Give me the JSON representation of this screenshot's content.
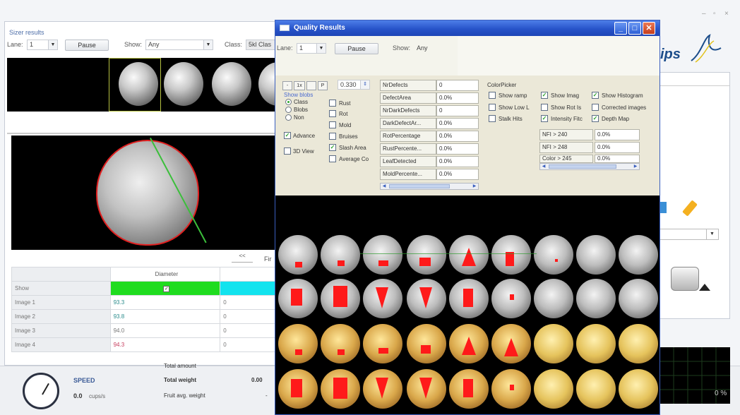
{
  "window_controls": {
    "minimize": "–",
    "maximize": "▫",
    "close": "×"
  },
  "logo": {
    "text": "ips"
  },
  "sizer": {
    "title": "Sizer results",
    "lane_label": "Lane:",
    "lane_value": "1",
    "pause_label": "Pause",
    "show_label": "Show:",
    "show_value": "Any",
    "class_label": "Class:",
    "class_value": "5kl Clas",
    "pager_label": "<<",
    "pager_right": "Fir",
    "table": {
      "diameter_header": "Diameter",
      "show_label": "Show",
      "rows": [
        {
          "label": "Image 1",
          "diameter": "93.3",
          "col3": "0"
        },
        {
          "label": "Image 2",
          "diameter": "93.8",
          "col3": "0"
        },
        {
          "label": "Image 3",
          "diameter": "94.0",
          "col3": "0"
        },
        {
          "label": "Image 4",
          "diameter": "94.3",
          "col3": "0"
        }
      ]
    }
  },
  "bottom": {
    "speed_label": "SPEED",
    "speed_value": "0.0",
    "speed_unit": "cups/s",
    "cut_label": "Total amount",
    "total_weight_label": "Total weight",
    "total_weight_value": "0.00",
    "fruit_avg_label": "Fruit avg. weight",
    "fruit_avg_value": "-",
    "graph_percent": "0 %"
  },
  "quality": {
    "title": "Quality Results",
    "lane_label": "Lane:",
    "lane_value": "1",
    "pause_label": "Pause",
    "show_label": "Show:",
    "show_value": "Any",
    "zoom_buttons": [
      "-",
      "1x",
      "",
      "P"
    ],
    "threshold_value": "0.330",
    "show_blobs_label": "Show blobs",
    "radios": [
      {
        "label": "Class",
        "on": true
      },
      {
        "label": "Blobs",
        "on": false
      },
      {
        "label": "Non",
        "on": false
      }
    ],
    "advanced_label": "Advance",
    "view3d_label": "3D View",
    "defect_checks": [
      {
        "label": "Rust",
        "checked": false
      },
      {
        "label": "Rot",
        "checked": false
      },
      {
        "label": "Mold",
        "checked": false
      },
      {
        "label": "Bruises",
        "checked": false
      },
      {
        "label": "Slash Area",
        "checked": true
      },
      {
        "label": "Average Co",
        "checked": false
      }
    ],
    "stats": [
      {
        "name": "NrDefects",
        "value": "0"
      },
      {
        "name": "DefectArea",
        "value": "0.0%"
      },
      {
        "name": "NrDarkDefects",
        "value": "0"
      },
      {
        "name": "DarkDefectAr...",
        "value": "0.0%"
      },
      {
        "name": "RotPercentage",
        "value": "0.0%"
      },
      {
        "name": "RustPercente...",
        "value": "0.0%"
      },
      {
        "name": "LeafDetected",
        "value": "0.0%"
      },
      {
        "name": "MoldPercente...",
        "value": "0.0%"
      }
    ],
    "colorpicker_label": "ColorPicker",
    "options": [
      {
        "label": "Show ramp",
        "checked": false
      },
      {
        "label": "Show Imag",
        "checked": true
      },
      {
        "label": "Show Histogram",
        "checked": true
      },
      {
        "label": "Show Low L",
        "checked": false
      },
      {
        "label": "Show Rot Is",
        "checked": false
      },
      {
        "label": "Corrected images",
        "checked": false
      },
      {
        "label": "Stalk Hits",
        "checked": false
      },
      {
        "label": "Intensity Fitc",
        "checked": true
      },
      {
        "label": "Depth Map",
        "checked": true
      }
    ],
    "nfi": [
      {
        "name": "NFI > 240",
        "value": "0.0%"
      },
      {
        "name": "NFI > 248",
        "value": "0.0%"
      },
      {
        "name": "Color > 245",
        "value": "0.0%"
      }
    ]
  },
  "colors": {
    "titlebar": "#2753c9",
    "defect": "#ff1a1a",
    "show_green": "#1fdc1f",
    "show_cyan": "#12e3ee"
  }
}
